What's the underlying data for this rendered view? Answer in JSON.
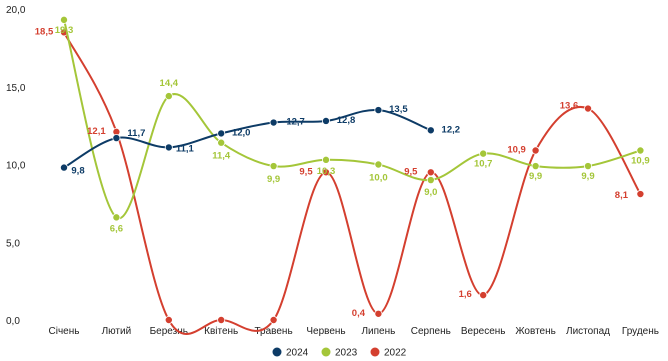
{
  "chart_data": {
    "type": "line",
    "categories": [
      "Січень",
      "Лютий",
      "Березнь",
      "Квітень",
      "Травень",
      "Червень",
      "Липень",
      "Серпень",
      "Вересень",
      "Жовтень",
      "Листопад",
      "Грудень"
    ],
    "ylim": [
      0,
      20
    ],
    "yticks": [
      "0,0",
      "5,0",
      "10,0",
      "15,0",
      "20,0"
    ],
    "grid": false,
    "legend": "bottom",
    "series": [
      {
        "name": "2024",
        "color": "#0d3b66",
        "values": [
          9.8,
          11.7,
          11.1,
          12.0,
          12.7,
          12.8,
          13.5,
          12.2,
          null,
          null,
          null,
          null
        ],
        "labels": [
          "9,8",
          "11,7",
          "11,1",
          "12,0",
          "12,7",
          "12,8",
          "13,5",
          "12,2",
          "",
          "",
          "",
          ""
        ]
      },
      {
        "name": "2023",
        "color": "#a4c639",
        "values": [
          19.3,
          6.6,
          14.4,
          11.4,
          9.9,
          10.3,
          10.0,
          9.0,
          10.7,
          9.9,
          9.9,
          10.9
        ],
        "labels": [
          "19,3",
          "6,6",
          "14,4",
          "11,4",
          "9,9",
          "10,3",
          "10,0",
          "9,0",
          "10,7",
          "9,9",
          "9,9",
          "10,9"
        ]
      },
      {
        "name": "2022",
        "color": "#d43f2f",
        "values": [
          18.5,
          12.1,
          0,
          0,
          0,
          9.5,
          0.4,
          9.5,
          1.6,
          10.9,
          13.6,
          8.1
        ],
        "labels": [
          "18,5",
          "12,1",
          "",
          "",
          "",
          "9,5",
          "0,4",
          "9,5",
          "1,6",
          "10,9",
          "13,6",
          "8,1"
        ]
      }
    ]
  }
}
